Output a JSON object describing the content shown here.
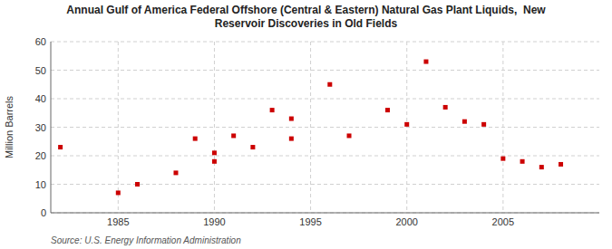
{
  "chart_data": {
    "type": "scatter",
    "title": "Annual Gulf of America Federal Offshore (Central & Eastern) Natural Gas Plant Liquids,  New\nReservoir Discoveries in Old Fields",
    "y_label": "Million Barrels",
    "source": "Source: U.S. Energy Information Administration",
    "x": [
      1982,
      1985,
      1986,
      1988,
      1989,
      1990,
      1990,
      1991,
      1992,
      1993,
      1994,
      1994,
      1996,
      1997,
      1999,
      2000,
      2001,
      2002,
      2003,
      2004,
      2005,
      2006,
      2007,
      2008
    ],
    "values": [
      23,
      7,
      10,
      14,
      26,
      21,
      18,
      27,
      23,
      36,
      26,
      33,
      45,
      27,
      36,
      31,
      53,
      37,
      32,
      31,
      19,
      18,
      16,
      17
    ],
    "color": "#cc0000",
    "marker": "square",
    "xlim": [
      1981.5,
      2010
    ],
    "ylim": [
      0,
      60
    ],
    "xticks": [
      1985,
      1990,
      1995,
      2000,
      2005
    ],
    "yticks": [
      0,
      10,
      20,
      30,
      40,
      50,
      60
    ],
    "grid": true
  }
}
